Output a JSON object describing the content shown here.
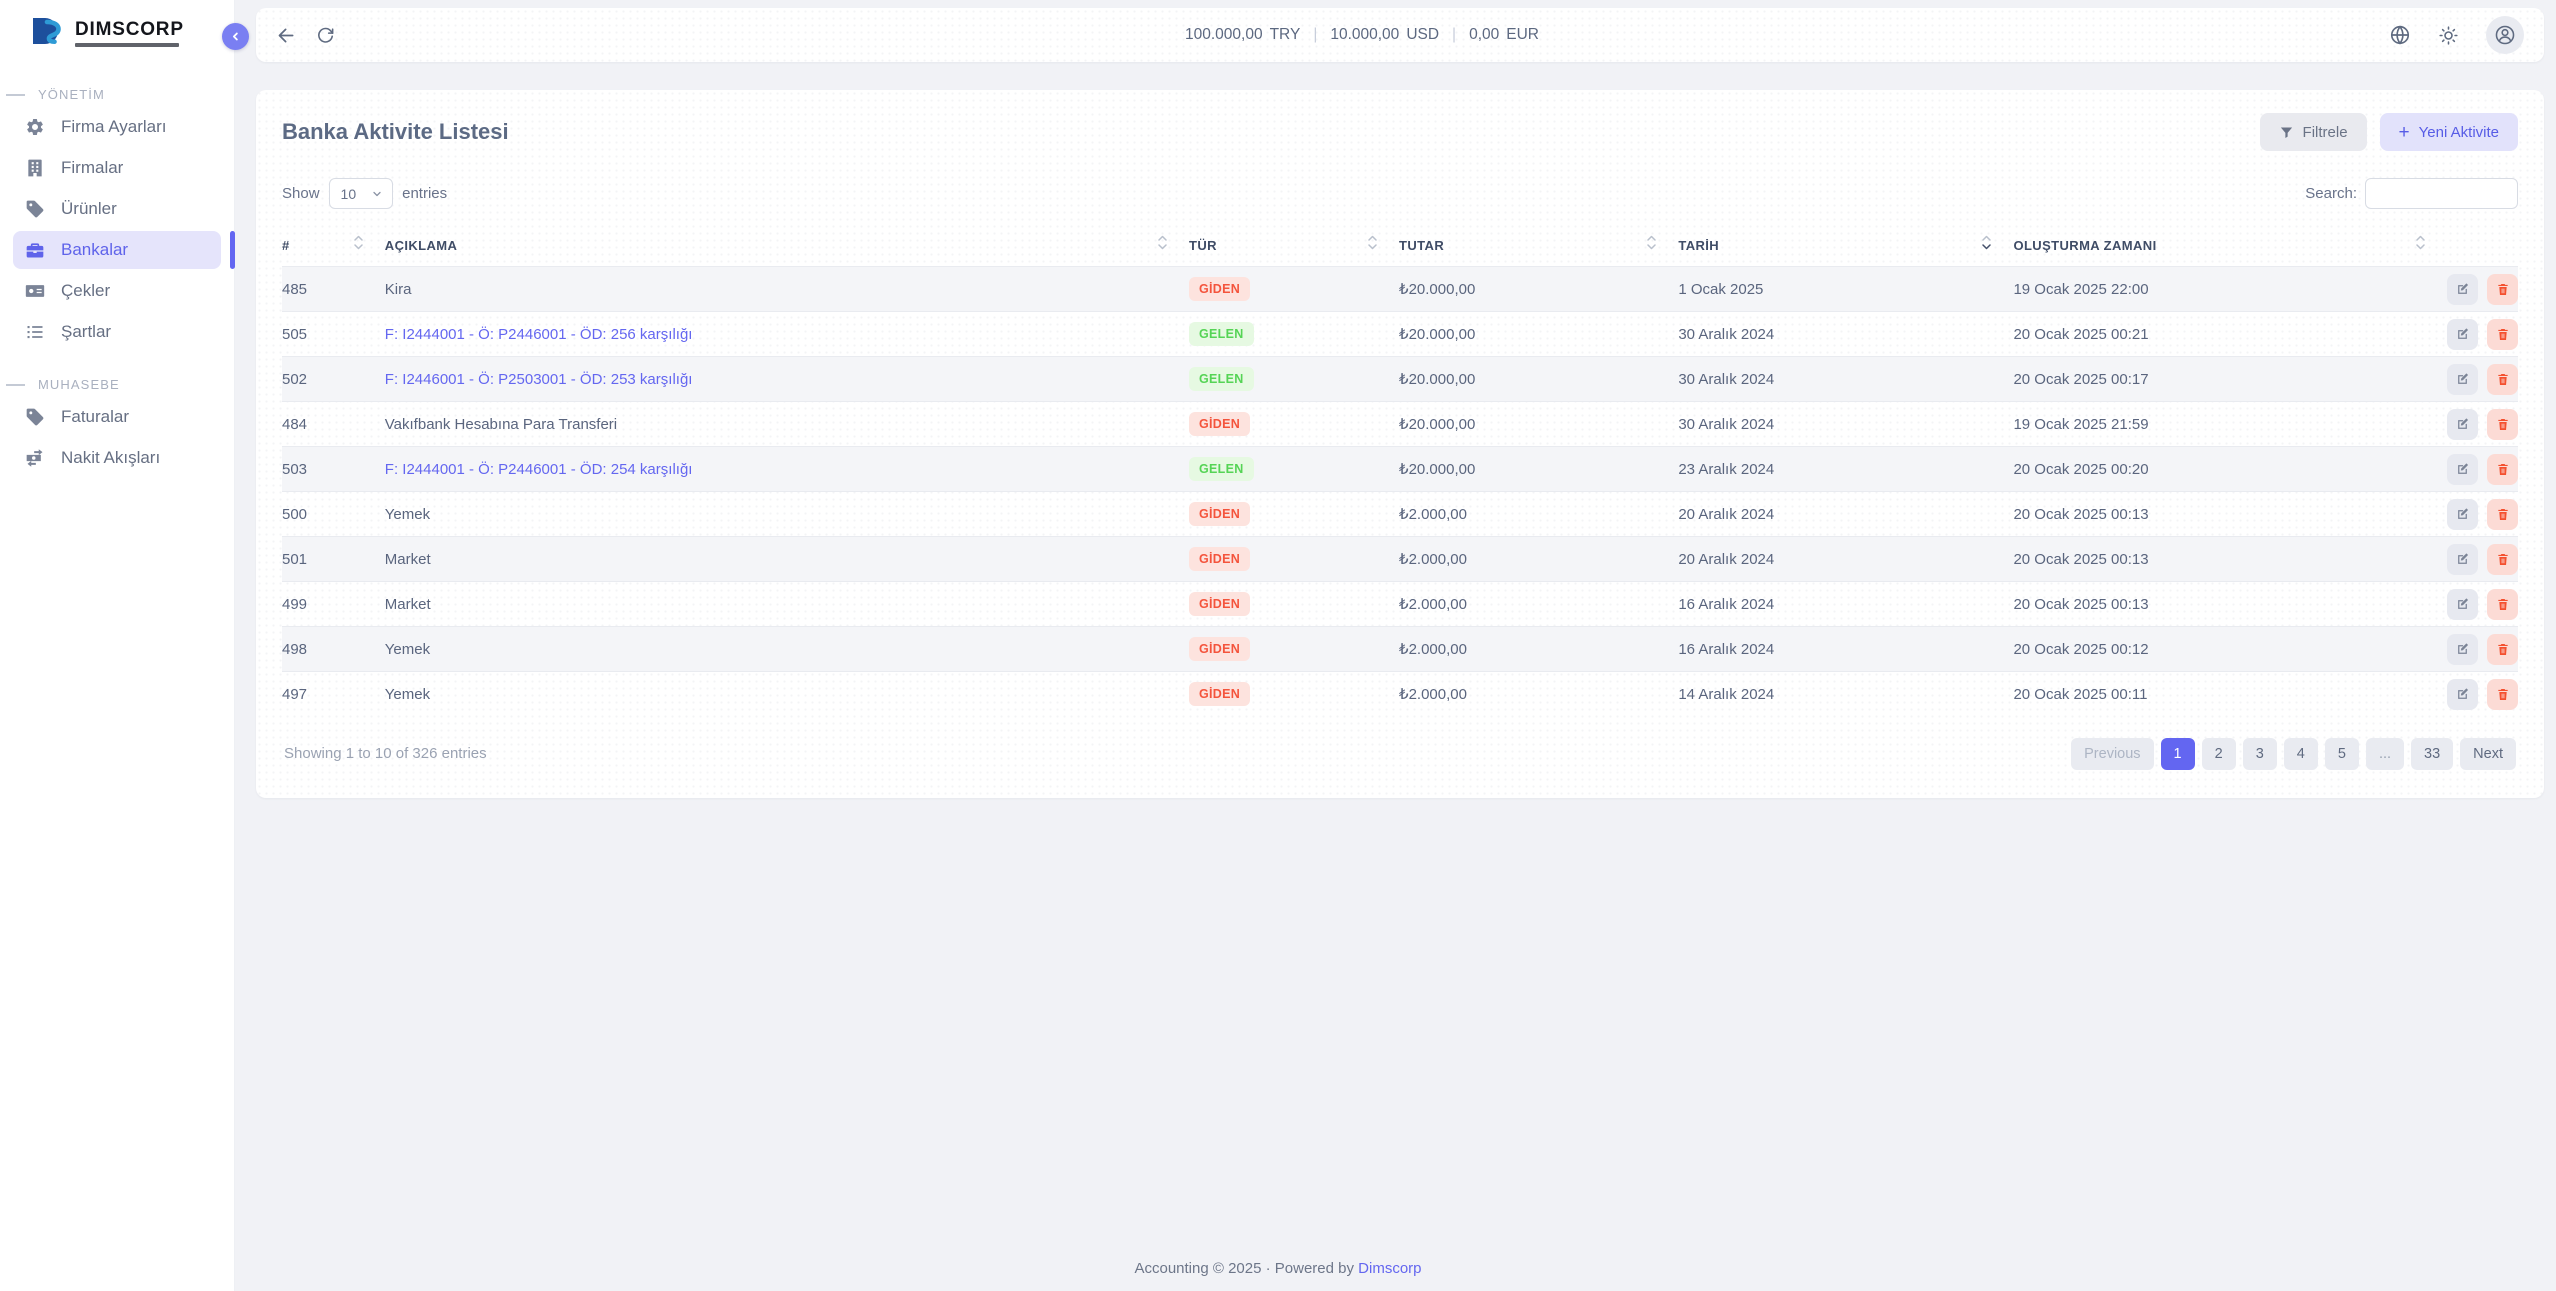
{
  "colors": {
    "primary": "#6366f1",
    "primary_light": "#e2e2fb",
    "link": "#6467f0",
    "giden_text": "#f4543c",
    "giden_bg": "#fde3de",
    "gelen_text": "#55d455",
    "gelen_bg": "#e6f9e2",
    "delete_icon": "#f4502f",
    "delete_bg": "#fcdbd5"
  },
  "sidebar": {
    "logo_title": "DIMSCORP",
    "sections": [
      {
        "label": "YÖNETİM",
        "items": [
          {
            "label": "Firma Ayarları",
            "icon": "gear-icon",
            "active": false
          },
          {
            "label": "Firmalar",
            "icon": "building-icon",
            "active": false
          },
          {
            "label": "Ürünler",
            "icon": "tag-icon",
            "active": false
          },
          {
            "label": "Bankalar",
            "icon": "briefcase-icon",
            "active": true
          },
          {
            "label": "Çekler",
            "icon": "money-check-icon",
            "active": false
          },
          {
            "label": "Şartlar",
            "icon": "list-icon",
            "active": false
          }
        ]
      },
      {
        "label": "MUHASEBE",
        "items": [
          {
            "label": "Faturalar",
            "icon": "tag-icon",
            "active": false
          },
          {
            "label": "Nakit Akışları",
            "icon": "cash-flow-icon",
            "active": false
          }
        ]
      }
    ]
  },
  "topbar": {
    "balances": [
      {
        "amount": "100.000,00",
        "currency": "TRY"
      },
      {
        "amount": "10.000,00",
        "currency": "USD"
      },
      {
        "amount": "0,00",
        "currency": "EUR"
      }
    ]
  },
  "page": {
    "title": "Banka Aktivite Listesi",
    "filter_label": "Filtrele",
    "new_label": "Yeni Aktivite",
    "plus_glyph": "+"
  },
  "table": {
    "show_label": "Show",
    "entries_label": "entries",
    "page_size": "10",
    "search_label": "Search:",
    "search_value": "",
    "columns": [
      {
        "label": "#",
        "sortable": true,
        "sorted": null
      },
      {
        "label": "AÇIKLAMA",
        "sortable": true,
        "sorted": null
      },
      {
        "label": "TÜR",
        "sortable": true,
        "sorted": null
      },
      {
        "label": "TUTAR",
        "sortable": true,
        "sorted": null
      },
      {
        "label": "TARİH",
        "sortable": true,
        "sorted": "desc"
      },
      {
        "label": "OLUŞTURMA ZAMANI",
        "sortable": true,
        "sorted": null
      },
      {
        "label": "",
        "sortable": false,
        "sorted": null
      }
    ],
    "rows": [
      {
        "id": "485",
        "desc": "Kira",
        "desc_link": false,
        "type": "GİDEN",
        "amount": "₺20.000,00",
        "date": "1 Ocak 2025",
        "created": "19 Ocak 2025 22:00"
      },
      {
        "id": "505",
        "desc": "F: I2444001 - Ö: P2446001 - ÖD: 256 karşılığı",
        "desc_link": true,
        "type": "GELEN",
        "amount": "₺20.000,00",
        "date": "30 Aralık 2024",
        "created": "20 Ocak 2025 00:21"
      },
      {
        "id": "502",
        "desc": "F: I2446001 - Ö: P2503001 - ÖD: 253 karşılığı",
        "desc_link": true,
        "type": "GELEN",
        "amount": "₺20.000,00",
        "date": "30 Aralık 2024",
        "created": "20 Ocak 2025 00:17"
      },
      {
        "id": "484",
        "desc": "Vakıfbank Hesabına Para Transferi",
        "desc_link": false,
        "type": "GİDEN",
        "amount": "₺20.000,00",
        "date": "30 Aralık 2024",
        "created": "19 Ocak 2025 21:59"
      },
      {
        "id": "503",
        "desc": "F: I2444001 - Ö: P2446001 - ÖD: 254 karşılığı",
        "desc_link": true,
        "type": "GELEN",
        "amount": "₺20.000,00",
        "date": "23 Aralık 2024",
        "created": "20 Ocak 2025 00:20"
      },
      {
        "id": "500",
        "desc": "Yemek",
        "desc_link": false,
        "type": "GİDEN",
        "amount": "₺2.000,00",
        "date": "20 Aralık 2024",
        "created": "20 Ocak 2025 00:13"
      },
      {
        "id": "501",
        "desc": "Market",
        "desc_link": false,
        "type": "GİDEN",
        "amount": "₺2.000,00",
        "date": "20 Aralık 2024",
        "created": "20 Ocak 2025 00:13"
      },
      {
        "id": "499",
        "desc": "Market",
        "desc_link": false,
        "type": "GİDEN",
        "amount": "₺2.000,00",
        "date": "16 Aralık 2024",
        "created": "20 Ocak 2025 00:13"
      },
      {
        "id": "498",
        "desc": "Yemek",
        "desc_link": false,
        "type": "GİDEN",
        "amount": "₺2.000,00",
        "date": "16 Aralık 2024",
        "created": "20 Ocak 2025 00:12"
      },
      {
        "id": "497",
        "desc": "Yemek",
        "desc_link": false,
        "type": "GİDEN",
        "amount": "₺2.000,00",
        "date": "14 Aralık 2024",
        "created": "20 Ocak 2025 00:11"
      }
    ],
    "info": "Showing 1 to 10 of 326 entries",
    "pagination": [
      {
        "label": "Previous",
        "state": "disabled"
      },
      {
        "label": "1",
        "state": "active"
      },
      {
        "label": "2",
        "state": "normal"
      },
      {
        "label": "3",
        "state": "normal"
      },
      {
        "label": "4",
        "state": "normal"
      },
      {
        "label": "5",
        "state": "normal"
      },
      {
        "label": "...",
        "state": "ellipsis"
      },
      {
        "label": "33",
        "state": "normal"
      },
      {
        "label": "Next",
        "state": "normal"
      }
    ]
  },
  "footer": {
    "text": "Accounting © 2025 · Powered by",
    "brand": "Dimscorp"
  }
}
